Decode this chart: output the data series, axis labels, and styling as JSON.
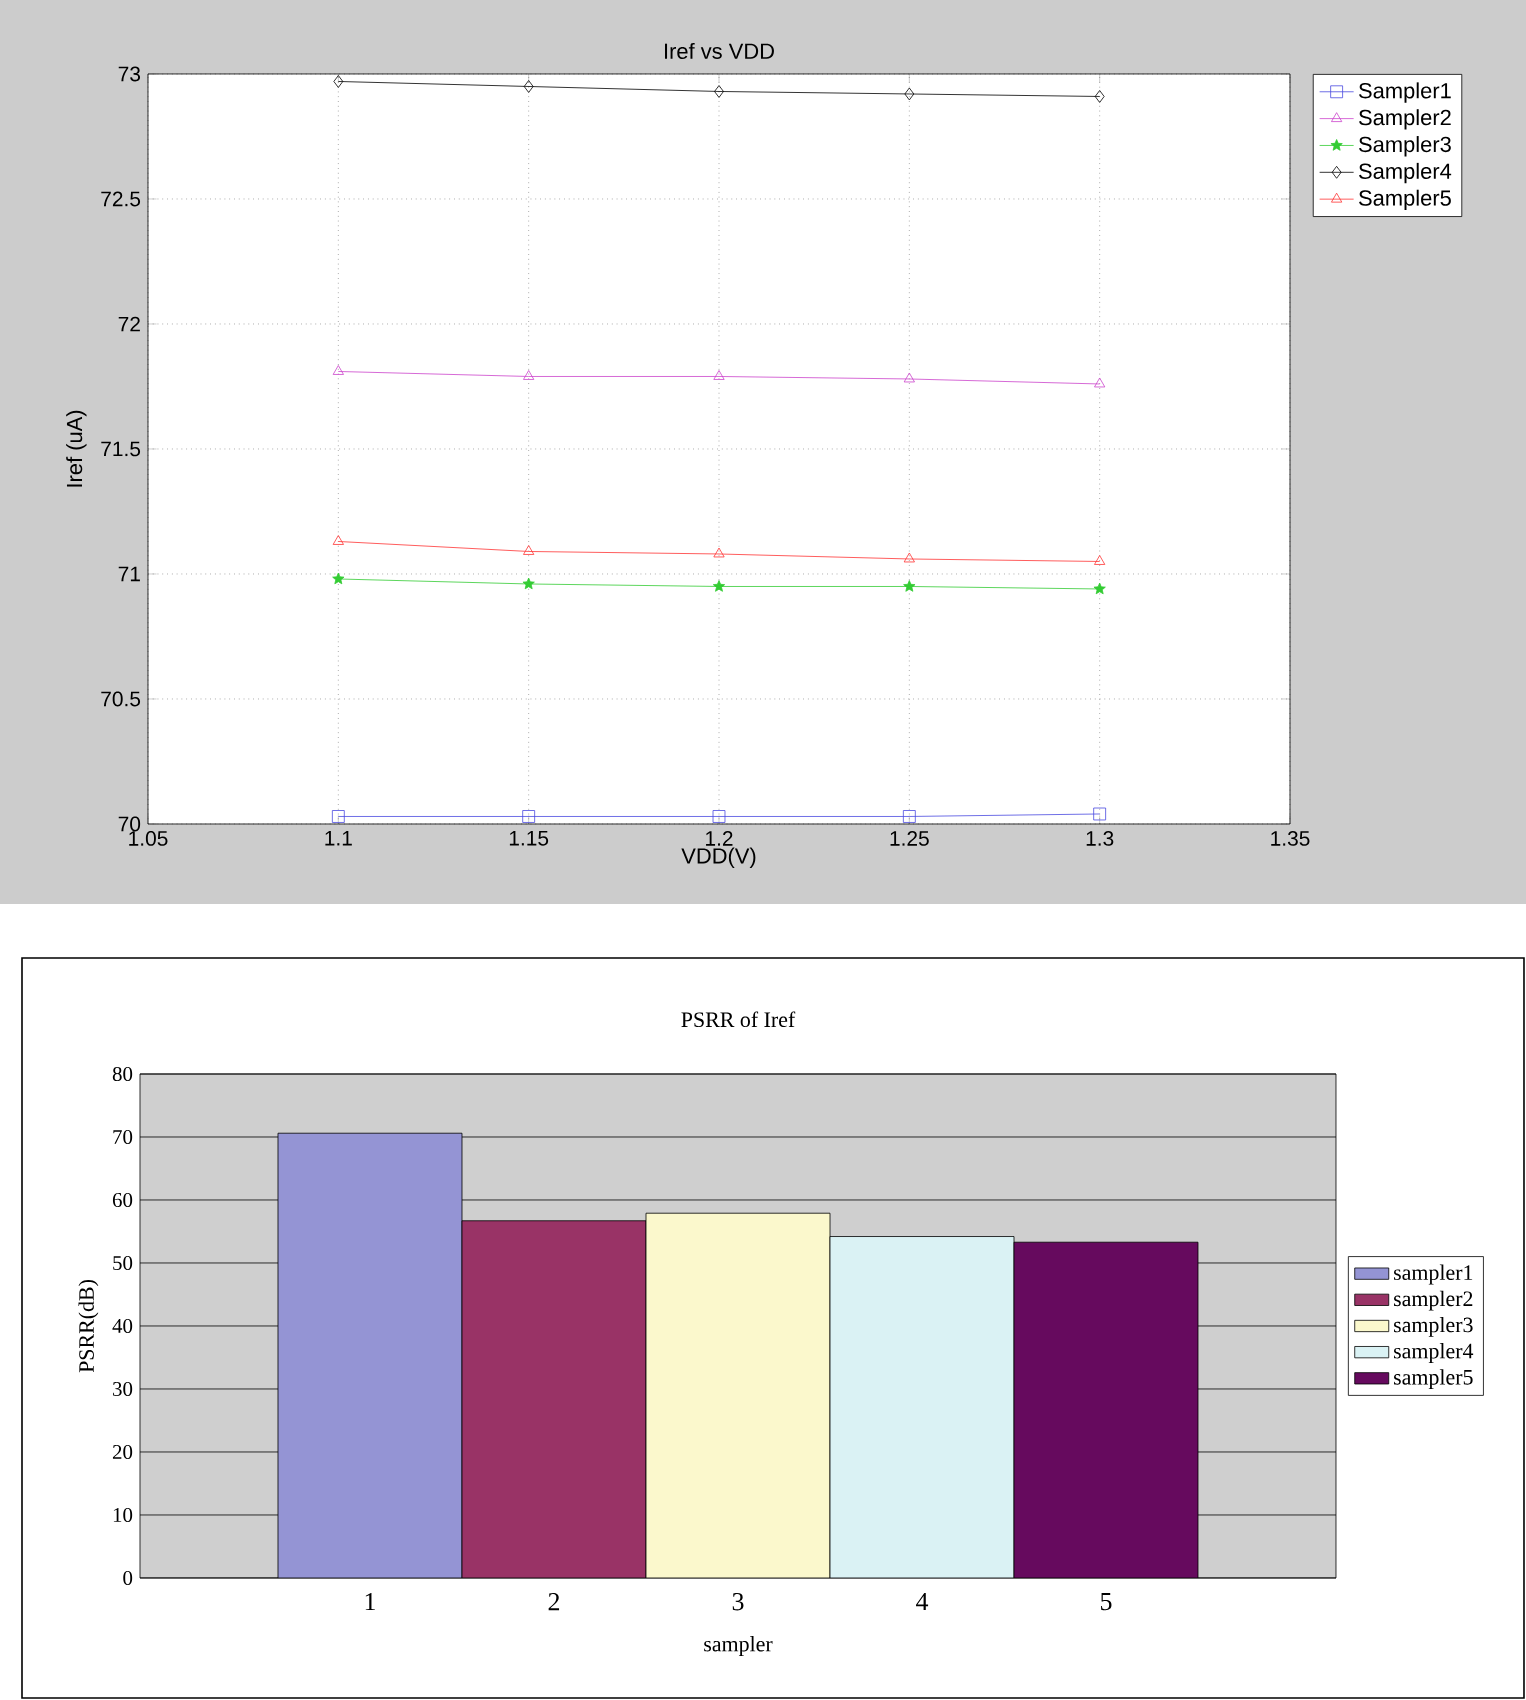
{
  "chart_data": [
    {
      "type": "line",
      "title": "Iref vs VDD",
      "xlabel": "VDD(V)",
      "ylabel": "Iref (uA)",
      "x": [
        1.1,
        1.15,
        1.2,
        1.25,
        1.3
      ],
      "xlim": [
        1.05,
        1.35
      ],
      "xticks": [
        1.05,
        1.1,
        1.15,
        1.2,
        1.25,
        1.3,
        1.35
      ],
      "ylim": [
        70,
        73
      ],
      "yticks": [
        70,
        70.5,
        71,
        71.5,
        72,
        72.5,
        73
      ],
      "grid": true,
      "legend": "top right",
      "line_style": "solid",
      "series": [
        {
          "name": "Sampler1",
          "color": "#4a4ae0",
          "marker": "square",
          "values": [
            70.03,
            70.03,
            70.03,
            70.03,
            70.04
          ]
        },
        {
          "name": "Sampler2",
          "color": "#cc44cc",
          "marker": "triangle",
          "values": [
            71.81,
            71.79,
            71.79,
            71.78,
            71.76
          ]
        },
        {
          "name": "Sampler3",
          "color": "#33cc33",
          "marker": "star",
          "values": [
            70.98,
            70.96,
            70.95,
            70.95,
            70.94
          ]
        },
        {
          "name": "Sampler4",
          "color": "#000000",
          "marker": "diamond",
          "values": [
            72.97,
            72.95,
            72.93,
            72.92,
            72.91
          ]
        },
        {
          "name": "Sampler5",
          "color": "#ff3333",
          "marker": "triangle",
          "values": [
            71.13,
            71.09,
            71.08,
            71.06,
            71.05
          ]
        }
      ]
    },
    {
      "type": "bar",
      "title": "PSRR of Iref",
      "xlabel": "sampler",
      "ylabel": "PSRR(dB)",
      "categories": [
        "1",
        "2",
        "3",
        "4",
        "5"
      ],
      "ylim": [
        0,
        80
      ],
      "yticks": [
        0,
        10,
        20,
        30,
        40,
        50,
        60,
        70,
        80
      ],
      "grid": "y",
      "legend": "right",
      "series": [
        {
          "name": "sampler1",
          "color": "#9494d4",
          "values": [
            70.6,
            null,
            null,
            null,
            null
          ]
        },
        {
          "name": "sampler2",
          "color": "#993366",
          "values": [
            null,
            56.7,
            null,
            null,
            null
          ]
        },
        {
          "name": "sampler3",
          "color": "#fbf8cc",
          "values": [
            null,
            null,
            57.9,
            null,
            null
          ]
        },
        {
          "name": "sampler4",
          "color": "#daf2f4",
          "values": [
            null,
            null,
            null,
            54.2,
            null
          ]
        },
        {
          "name": "sampler5",
          "color": "#660a5e",
          "values": [
            null,
            null,
            null,
            null,
            53.3
          ]
        }
      ]
    }
  ]
}
